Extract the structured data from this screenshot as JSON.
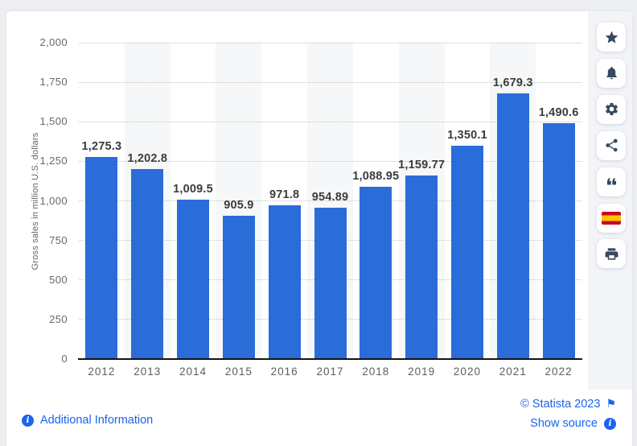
{
  "page": {
    "background": "#eceef2",
    "card_background": "#ffffff"
  },
  "chart_data": {
    "type": "bar",
    "title": "",
    "categories": [
      "2012",
      "2013",
      "2014",
      "2015",
      "2016",
      "2017",
      "2018",
      "2019",
      "2020",
      "2021",
      "2022"
    ],
    "values": [
      1275.3,
      1202.8,
      1009.5,
      905.9,
      971.8,
      954.89,
      1088.95,
      1159.77,
      1350.1,
      1679.3,
      1490.6
    ],
    "value_labels": [
      "1,275.3",
      "1,202.8",
      "1,009.5",
      "905.9",
      "971.8",
      "954.89",
      "1,088.95",
      "1,159.77",
      "1,350.1",
      "1,679.3",
      "1,490.6"
    ],
    "xlabel": "",
    "ylabel": "Gross sales in million U.S. dollars",
    "ylim": [
      0,
      2000
    ],
    "yticks": [
      0,
      250,
      500,
      750,
      1000,
      1250,
      1500,
      1750,
      2000
    ],
    "ytick_labels": [
      "0",
      "250",
      "500",
      "750",
      "1,000",
      "1,250",
      "1,500",
      "1,750",
      "2,000"
    ],
    "grid": "horizontal-dotted",
    "legend": "none",
    "bar_color": "#2a6dd9",
    "alternating_band_color": "#f6f7f8",
    "banded_categories": [
      "2013",
      "2015",
      "2017",
      "2019",
      "2021"
    ]
  },
  "toolbar": {
    "buttons": [
      {
        "id": "favorite",
        "icon": "star-icon"
      },
      {
        "id": "notification",
        "icon": "bell-icon"
      },
      {
        "id": "settings",
        "icon": "gear-icon"
      },
      {
        "id": "share",
        "icon": "share-icon"
      },
      {
        "id": "citation",
        "icon": "quote-icon"
      },
      {
        "id": "language-spanish",
        "icon": "spain-flag-icon"
      },
      {
        "id": "print",
        "icon": "printer-icon"
      }
    ]
  },
  "footer": {
    "additional_information_label": "Additional Information",
    "copyright_label": "© Statista 2023",
    "show_source_label": "Show source",
    "info_icon": "info-circle-icon",
    "copyright_flag_icon": "report-flag-icon"
  },
  "colors": {
    "bar": "#2a6dd9",
    "link": "#1a63f0",
    "toolbar_icon": "#36495d",
    "axis_text": "#666666",
    "value_label_text": "#3c3c3c",
    "flag_red": "#c60b1e",
    "flag_yellow": "#ffc400"
  }
}
